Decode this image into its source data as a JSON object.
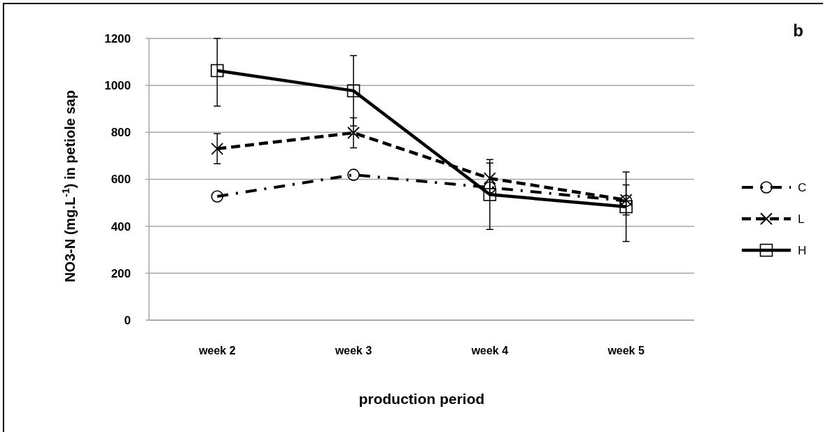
{
  "chart_data": {
    "type": "line",
    "title": "b",
    "xlabel": "production period",
    "ylabel": "NO3-N (mg.L$^{-1}$) in petiole sap",
    "categories": [
      "week 2",
      "week 3",
      "week 4",
      "week 5"
    ],
    "series": [
      {
        "name": "C",
        "color": "#000000",
        "values": [
          527,
          619,
          565,
          508
        ],
        "marker": "circle",
        "line_style": "dashdot"
      },
      {
        "name": "L",
        "color": "#000000",
        "values": [
          730,
          798,
          604,
          512
        ],
        "errors": [
          64,
          64,
          65,
          64
        ],
        "marker": "cross",
        "line_style": "dashed"
      },
      {
        "name": "H",
        "color": "#000000",
        "values": [
          1063,
          977,
          535,
          483
        ],
        "errors": [
          [
            912,
            1200
          ],
          150,
          149,
          148
        ],
        "marker": "square",
        "line_style": "solid"
      }
    ],
    "ylim": [
      0,
      1200
    ],
    "yticks": [
      0,
      200,
      400,
      600,
      800,
      1000,
      1200
    ],
    "grid": "y",
    "legend": "right"
  }
}
